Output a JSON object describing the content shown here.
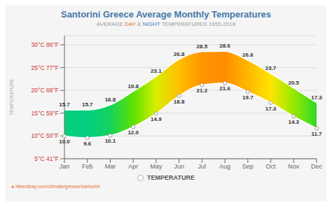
{
  "chart_data": {
    "type": "range_area",
    "title": "Santorini Greece Average Monthly Temperatures",
    "subtitle": [
      {
        "text": "AVERAGE ",
        "color": "#999999"
      },
      {
        "text": "DAY",
        "color": "#e87030"
      },
      {
        "text": " & ",
        "color": "#999999"
      },
      {
        "text": "NIGHT",
        "color": "#4477bb"
      },
      {
        "text": " TEMPERATURES 1955-2018",
        "color": "#999999"
      }
    ],
    "annotations": [
      "● hikersbay.com/climate/greece/santorini"
    ],
    "ylabel": "TEMPERATURE",
    "categories": [
      "Jan",
      "Feb",
      "Mar",
      "Apr",
      "May",
      "Jun",
      "Jul",
      "Aug",
      "Sep",
      "Oct",
      "Nov",
      "Dec"
    ],
    "series": [
      {
        "name": "TEMPERATURE",
        "high": [
          15.7,
          15.7,
          16.8,
          19.8,
          23.1,
          26.8,
          28.5,
          28.6,
          26.6,
          23.7,
          20.5,
          17.3
        ],
        "low": [
          10.0,
          9.6,
          10.1,
          12.0,
          14.9,
          18.8,
          21.2,
          21.6,
          19.7,
          17.3,
          14.3,
          11.7
        ]
      }
    ],
    "ylim": [
      5,
      32
    ],
    "yticks": [
      {
        "value": 5,
        "label": "5°C 41°F"
      },
      {
        "value": 10,
        "label": "10°C 50°F"
      },
      {
        "value": 15,
        "label": "15°C 59°F"
      },
      {
        "value": 20,
        "label": "20°C 68°F"
      },
      {
        "value": 25,
        "label": "25°C 77°F"
      },
      {
        "value": 30,
        "label": "30°C 86°F"
      }
    ],
    "color_scale": [
      {
        "stop": 0.0,
        "color": "#1155bb"
      },
      {
        "stop": 0.08,
        "color": "#0088dd"
      },
      {
        "stop": 0.18,
        "color": "#00bbcc"
      },
      {
        "stop": 0.28,
        "color": "#00cc88"
      },
      {
        "stop": 0.38,
        "color": "#44dd00"
      },
      {
        "stop": 0.48,
        "color": "#aaee00"
      },
      {
        "stop": 0.55,
        "color": "#ffee00"
      },
      {
        "stop": 0.63,
        "color": "#ffcc00"
      },
      {
        "stop": 0.7,
        "color": "#ffaa00"
      },
      {
        "stop": 0.78,
        "color": "#ff7700"
      },
      {
        "stop": 0.85,
        "color": "#ff4400"
      },
      {
        "stop": 0.92,
        "color": "#ee1100"
      },
      {
        "stop": 1.0,
        "color": "#cc0000"
      }
    ],
    "grid": true,
    "data_labels": true,
    "legend": "bottom"
  }
}
